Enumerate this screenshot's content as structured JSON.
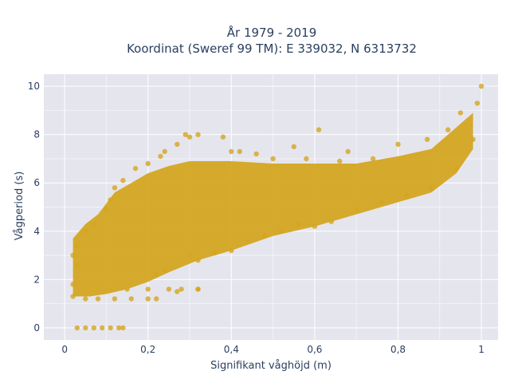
{
  "chart_data": {
    "type": "scatter",
    "title_line1": "År 1979 - 2019",
    "title_line2": "Koordinat (Sweref 99 TM): E 339032, N 6313732",
    "xlabel": "Signifikant våghöjd (m)",
    "ylabel": "Vågperiod (s)",
    "xlim": [
      -0.05,
      1.04
    ],
    "ylim": [
      -0.5,
      10.5
    ],
    "xticks": [
      0,
      0.2,
      0.4,
      0.6,
      0.8,
      1
    ],
    "xtick_labels": [
      "0",
      "0,2",
      "0,4",
      "0,6",
      "0,8",
      "1"
    ],
    "yticks": [
      0,
      2,
      4,
      6,
      8,
      10
    ],
    "ytick_labels": [
      "0",
      "2",
      "4",
      "6",
      "8",
      "10"
    ],
    "grid": true,
    "legend": "none",
    "marker_color": "#D4A520",
    "plot_background": "#E5E5EE",
    "series": [
      {
        "points": [
          [
            0.03,
            0.0
          ],
          [
            0.05,
            0.0
          ],
          [
            0.07,
            0.0
          ],
          [
            0.09,
            0.0
          ],
          [
            0.11,
            0.0
          ],
          [
            0.13,
            0.0
          ],
          [
            0.14,
            0.0
          ],
          [
            0.02,
            1.3
          ],
          [
            0.02,
            1.8
          ],
          [
            0.03,
            2.6
          ],
          [
            0.03,
            3.4
          ],
          [
            0.02,
            3.0
          ],
          [
            0.05,
            1.2
          ],
          [
            0.08,
            1.2
          ],
          [
            0.12,
            1.2
          ],
          [
            0.16,
            1.2
          ],
          [
            0.2,
            1.2
          ],
          [
            0.22,
            1.2
          ],
          [
            0.15,
            1.6
          ],
          [
            0.2,
            1.6
          ],
          [
            0.25,
            1.6
          ],
          [
            0.28,
            1.6
          ],
          [
            0.32,
            1.6
          ],
          [
            0.05,
            4.0
          ],
          [
            0.07,
            4.3
          ],
          [
            0.1,
            4.9
          ],
          [
            0.11,
            5.3
          ],
          [
            0.12,
            5.8
          ],
          [
            0.14,
            6.1
          ],
          [
            0.17,
            6.6
          ],
          [
            0.2,
            6.8
          ],
          [
            0.23,
            7.1
          ],
          [
            0.24,
            7.3
          ],
          [
            0.27,
            7.6
          ],
          [
            0.3,
            7.9
          ],
          [
            0.29,
            8.0
          ],
          [
            0.32,
            8.0
          ],
          [
            0.38,
            7.9
          ],
          [
            0.4,
            7.3
          ],
          [
            0.46,
            7.2
          ],
          [
            0.55,
            7.5
          ],
          [
            0.61,
            8.2
          ],
          [
            0.68,
            7.3
          ],
          [
            0.8,
            7.6
          ],
          [
            0.87,
            7.8
          ],
          [
            0.92,
            8.2
          ],
          [
            0.95,
            8.9
          ],
          [
            0.99,
            9.3
          ],
          [
            1.0,
            10.0
          ],
          [
            0.42,
            7.3
          ],
          [
            0.5,
            7.0
          ],
          [
            0.58,
            7.0
          ],
          [
            0.66,
            6.9
          ],
          [
            0.74,
            7.0
          ],
          [
            0.52,
            4.0
          ],
          [
            0.56,
            4.3
          ],
          [
            0.6,
            4.2
          ],
          [
            0.64,
            4.4
          ],
          [
            0.7,
            4.9
          ],
          [
            0.76,
            5.2
          ],
          [
            0.82,
            5.5
          ],
          [
            0.88,
            5.8
          ],
          [
            0.94,
            6.6
          ],
          [
            0.98,
            7.8
          ],
          [
            0.22,
            2.2
          ],
          [
            0.24,
            2.4
          ],
          [
            0.3,
            3.0
          ],
          [
            0.32,
            2.8
          ],
          [
            0.36,
            3.1
          ],
          [
            0.4,
            3.2
          ],
          [
            0.44,
            3.6
          ],
          [
            0.48,
            3.8
          ],
          [
            0.32,
            1.6
          ],
          [
            0.27,
            1.5
          ]
        ]
      }
    ]
  }
}
